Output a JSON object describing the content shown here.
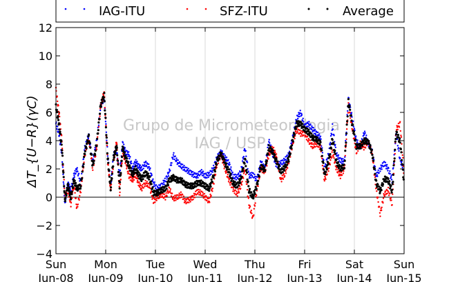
{
  "chart_data": {
    "type": "scatter",
    "title": "",
    "xlabel": "",
    "ylabel": "ΔT_{U−R}(γC)",
    "ylim": [
      -4,
      12
    ],
    "yticks": [
      -4,
      -2,
      0,
      2,
      4,
      6,
      8,
      10,
      12
    ],
    "xlim": [
      0,
      7
    ],
    "xticks": [
      {
        "x": 0,
        "day": "Sun",
        "date": "Jun-08"
      },
      {
        "x": 1,
        "day": "Mon",
        "date": "Jun-09"
      },
      {
        "x": 2,
        "day": "Tue",
        "date": "Jun-10"
      },
      {
        "x": 3,
        "day": "Wed",
        "date": "Jun-11"
      },
      {
        "x": 4,
        "day": "Thu",
        "date": "Jun-12"
      },
      {
        "x": 5,
        "day": "Fri",
        "date": "Jun-13"
      },
      {
        "x": 6,
        "day": "Sat",
        "date": "Jun-14"
      },
      {
        "x": 7,
        "day": "Sun",
        "date": "Jun-15"
      }
    ],
    "grid": "vertical",
    "zero_line": true,
    "legend_position": "top",
    "watermark": [
      "Grupo de Micrometeorologia",
      "IAG / USP"
    ],
    "series": [
      {
        "name": "IAG-ITU",
        "color": "#0000ff",
        "x": [
          0,
          0.06,
          0.12,
          0.18,
          0.24,
          0.3,
          0.36,
          0.42,
          0.5,
          0.58,
          0.66,
          0.74,
          0.82,
          0.9,
          0.97,
          1.04,
          1.1,
          1.16,
          1.22,
          1.28,
          1.34,
          1.4,
          1.47,
          1.54,
          1.6,
          1.66,
          1.72,
          1.8,
          1.88,
          1.96,
          2.04,
          2.12,
          2.2,
          2.28,
          2.36,
          2.44,
          2.52,
          2.6,
          2.68,
          2.76,
          2.84,
          2.92,
          3.0,
          3.08,
          3.16,
          3.24,
          3.32,
          3.4,
          3.48,
          3.56,
          3.64,
          3.72,
          3.8,
          3.88,
          3.96,
          4.04,
          4.12,
          4.2,
          4.28,
          4.36,
          4.44,
          4.52,
          4.6,
          4.68,
          4.76,
          4.84,
          4.92,
          5.0,
          5.08,
          5.16,
          5.24,
          5.32,
          5.4,
          5.48,
          5.56,
          5.64,
          5.72,
          5.8,
          5.88,
          5.96,
          6.04,
          6.12,
          6.2,
          6.28,
          6.36,
          6.44,
          6.52,
          6.6,
          6.68,
          6.76,
          6.84,
          6.92,
          7.0
        ],
        "y": [
          5.2,
          4.5,
          3.0,
          -0.5,
          1.0,
          0.5,
          1.5,
          2.0,
          1.0,
          3.5,
          4.4,
          2.5,
          4.0,
          6.5,
          7.0,
          3.0,
          0.8,
          3.0,
          3.3,
          1.5,
          3.8,
          3.2,
          3.0,
          2.0,
          2.5,
          2.2,
          2.0,
          2.4,
          2.1,
          1.0,
          0.6,
          0.8,
          1.2,
          1.8,
          3.0,
          2.5,
          2.2,
          2.0,
          1.8,
          1.6,
          1.5,
          1.8,
          1.5,
          1.6,
          2.0,
          2.8,
          3.2,
          2.8,
          2.4,
          1.5,
          1.4,
          1.8,
          3.5,
          1.5,
          1.6,
          1.2,
          2.5,
          2.0,
          4.0,
          3.0,
          2.2,
          2.4,
          2.6,
          3.0,
          4.2,
          5.6,
          6.0,
          5.0,
          5.2,
          4.8,
          4.5,
          4.2,
          2.0,
          3.0,
          5.0,
          3.0,
          2.6,
          2.5,
          7.0,
          5.5,
          4.0,
          3.5,
          4.6,
          3.8,
          3.2,
          1.5,
          2.0,
          2.4,
          2.0,
          1.2,
          4.5,
          2.6,
          2.0
        ]
      },
      {
        "name": "SFZ-ITU",
        "color": "#ff0000",
        "x": [
          0,
          0.06,
          0.12,
          0.18,
          0.24,
          0.3,
          0.36,
          0.42,
          0.5,
          0.58,
          0.66,
          0.74,
          0.82,
          0.9,
          0.97,
          1.04,
          1.1,
          1.16,
          1.22,
          1.28,
          1.34,
          1.4,
          1.47,
          1.54,
          1.6,
          1.66,
          1.72,
          1.8,
          1.88,
          1.96,
          2.04,
          2.12,
          2.2,
          2.28,
          2.36,
          2.44,
          2.52,
          2.6,
          2.68,
          2.76,
          2.84,
          2.92,
          3.0,
          3.08,
          3.16,
          3.24,
          3.32,
          3.4,
          3.48,
          3.56,
          3.64,
          3.72,
          3.8,
          3.88,
          3.96,
          4.04,
          4.12,
          4.2,
          4.28,
          4.36,
          4.44,
          4.52,
          4.6,
          4.68,
          4.76,
          4.84,
          4.92,
          5.0,
          5.08,
          5.16,
          5.24,
          5.32,
          5.4,
          5.48,
          5.56,
          5.64,
          5.72,
          5.8,
          5.88,
          5.96,
          6.04,
          6.12,
          6.2,
          6.28,
          6.36,
          6.44,
          6.52,
          6.6,
          6.68,
          6.76,
          6.84,
          6.92,
          7.0
        ],
        "y": [
          7.6,
          6.0,
          4.0,
          0.0,
          0.5,
          -0.5,
          1.0,
          -0.8,
          0.5,
          3.0,
          4.2,
          2.0,
          3.5,
          6.5,
          7.4,
          2.5,
          0.5,
          2.5,
          4.0,
          0.2,
          3.2,
          2.5,
          1.5,
          1.2,
          1.6,
          1.0,
          0.6,
          1.0,
          0.8,
          -0.3,
          0.0,
          0.2,
          0.0,
          0.6,
          -0.1,
          0.0,
          0.2,
          -0.3,
          -0.2,
          0.0,
          0.4,
          0.3,
          0.0,
          -0.3,
          0.8,
          2.4,
          3.0,
          2.0,
          1.2,
          0.6,
          0.2,
          0.8,
          2.0,
          -0.5,
          -1.5,
          0.5,
          2.0,
          1.8,
          3.0,
          3.5,
          2.8,
          1.2,
          1.6,
          2.5,
          3.8,
          4.8,
          4.5,
          4.5,
          4.0,
          3.6,
          3.8,
          3.5,
          1.2,
          2.0,
          3.2,
          2.0,
          1.5,
          2.0,
          6.5,
          4.8,
          3.2,
          3.8,
          3.5,
          4.0,
          3.0,
          0.5,
          -1.2,
          0.2,
          0.5,
          -0.5,
          4.8,
          5.2,
          1.5
        ]
      },
      {
        "name": "Average",
        "color": "#000000",
        "x": [
          0,
          0.06,
          0.12,
          0.18,
          0.24,
          0.3,
          0.36,
          0.42,
          0.5,
          0.58,
          0.66,
          0.74,
          0.82,
          0.9,
          0.97,
          1.04,
          1.1,
          1.16,
          1.22,
          1.28,
          1.34,
          1.4,
          1.47,
          1.54,
          1.6,
          1.66,
          1.72,
          1.8,
          1.88,
          1.96,
          2.04,
          2.12,
          2.2,
          2.28,
          2.36,
          2.44,
          2.52,
          2.6,
          2.68,
          2.76,
          2.84,
          2.92,
          3.0,
          3.08,
          3.16,
          3.24,
          3.32,
          3.4,
          3.48,
          3.56,
          3.64,
          3.72,
          3.8,
          3.88,
          3.96,
          4.04,
          4.12,
          4.2,
          4.28,
          4.36,
          4.44,
          4.52,
          4.6,
          4.68,
          4.76,
          4.84,
          4.92,
          5.0,
          5.08,
          5.16,
          5.24,
          5.32,
          5.4,
          5.48,
          5.56,
          5.64,
          5.72,
          5.8,
          5.88,
          5.96,
          6.04,
          6.12,
          6.2,
          6.28,
          6.36,
          6.44,
          6.52,
          6.6,
          6.68,
          6.76,
          6.84,
          6.92,
          7.0
        ],
        "y": [
          6.4,
          5.2,
          3.5,
          -0.2,
          0.8,
          0.0,
          1.2,
          0.6,
          0.8,
          3.2,
          4.3,
          2.2,
          3.8,
          6.5,
          7.2,
          2.8,
          0.6,
          2.8,
          3.6,
          0.8,
          3.5,
          2.8,
          2.2,
          1.6,
          2.0,
          1.6,
          1.3,
          1.7,
          1.4,
          0.3,
          0.3,
          0.5,
          0.6,
          1.2,
          1.4,
          1.2,
          1.2,
          0.9,
          0.8,
          0.8,
          1.0,
          1.0,
          0.8,
          0.6,
          1.4,
          2.6,
          3.1,
          2.4,
          1.8,
          1.0,
          0.8,
          1.3,
          2.7,
          0.5,
          0.0,
          0.8,
          2.2,
          1.9,
          3.5,
          3.2,
          2.5,
          1.8,
          2.1,
          2.7,
          4.0,
          5.2,
          5.2,
          4.8,
          4.6,
          4.2,
          4.1,
          3.8,
          1.6,
          2.5,
          4.1,
          2.5,
          2.0,
          2.2,
          6.8,
          5.1,
          3.6,
          3.6,
          4.0,
          3.9,
          3.1,
          1.0,
          0.4,
          1.3,
          1.2,
          0.4,
          4.6,
          3.9,
          1.0
        ]
      }
    ]
  }
}
